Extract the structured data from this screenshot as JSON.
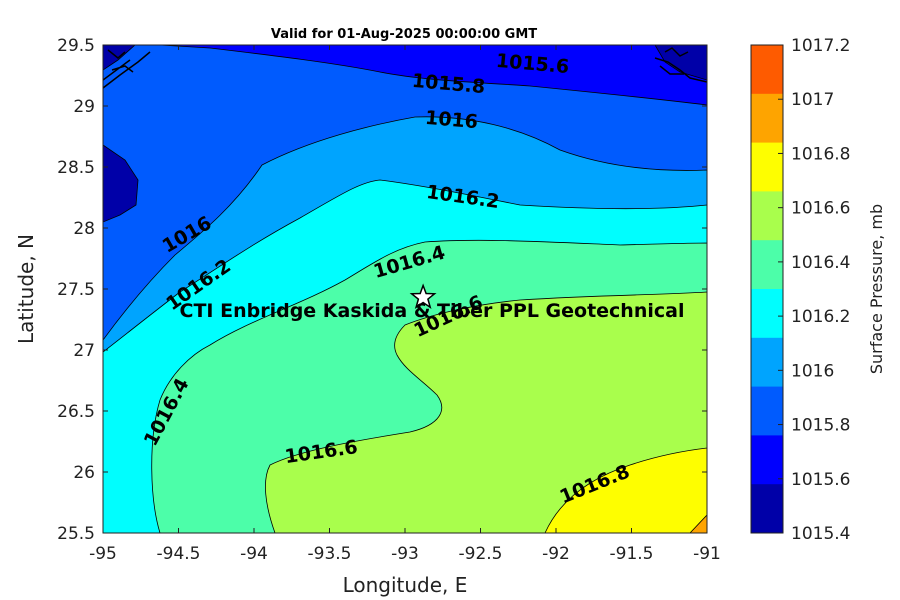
{
  "title": "Valid for 01-Aug-2025 00:00:00 GMT",
  "site_label": "CTI Enbridge  Kaskida & Tiber PPL Geotechnical",
  "map": {
    "xlabel": "Longitude, E",
    "ylabel": "Latitude, N",
    "x_ticks": [
      "-95",
      "-94.5",
      "-94",
      "-93.5",
      "-93",
      "-92.5",
      "-92",
      "-91.5",
      "-91"
    ],
    "y_ticks": [
      "29.5",
      "29",
      "28.5",
      "28",
      "27.5",
      "27",
      "26.5",
      "26",
      "25.5"
    ],
    "xlim": [
      -95,
      -91
    ],
    "ylim": [
      25.5,
      29.5
    ],
    "site_marker": {
      "lon": -92.88,
      "lat": 27.43,
      "symbol": "star"
    }
  },
  "colorbar": {
    "label": "Surface Pressure, mb",
    "ticks": [
      "1017.2",
      "1017",
      "1016.8",
      "1016.6",
      "1016.4",
      "1016.2",
      "1016",
      "1015.8",
      "1015.6",
      "1015.4"
    ],
    "colors": [
      "#fe5b00",
      "#fea400",
      "#fefe00",
      "#a9fe4c",
      "#4cfea9",
      "#00fefe",
      "#00a4fe",
      "#005bfe",
      "#0000fe",
      "#0000a8"
    ]
  },
  "contour_labels": [
    "1015.6",
    "1015.8",
    "1016",
    "1016.2",
    "1016",
    "1016.2",
    "1016.4",
    "1016.6",
    "1016.4",
    "1016.6",
    "1016.8"
  ]
}
